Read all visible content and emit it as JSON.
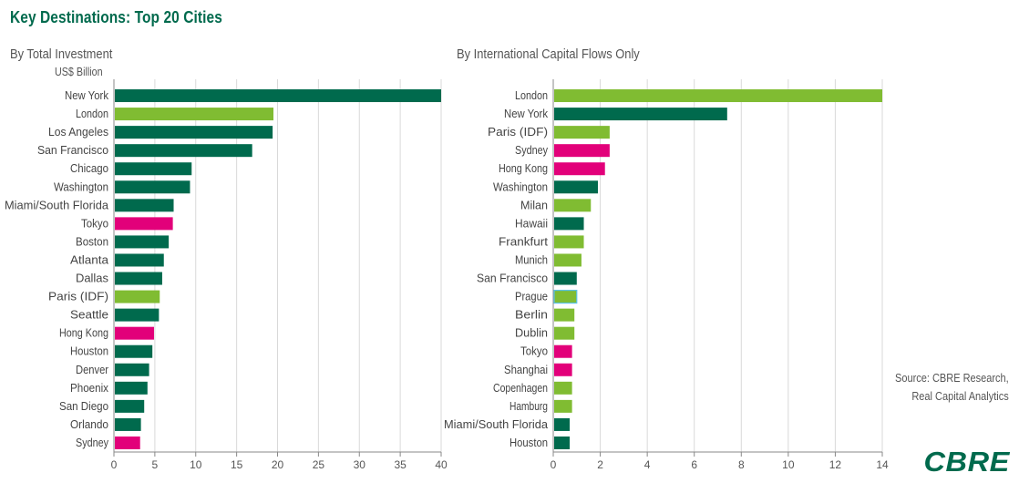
{
  "header": {
    "title": "Key Destinations: Top 20 Cities",
    "source_line1": "Source: CBRE Research,",
    "source_line2": "Real Capital Analytics",
    "logo": "CBRE"
  },
  "colors": {
    "dark_green": "#006a4d",
    "light_green": "#80bc32",
    "magenta": "#e2007a",
    "teal_outline": "#5bc2e7",
    "grid": "#d9d9d9",
    "axis": "#888888"
  },
  "chart_data": [
    {
      "type": "bar",
      "orientation": "horizontal",
      "title": "By Total Investment",
      "unit_label": "US$ Billion",
      "xlim": [
        0,
        40
      ],
      "xticks": [
        0,
        5,
        10,
        15,
        20,
        25,
        30,
        35,
        40
      ],
      "grid": true,
      "categories": [
        "New York",
        "London",
        "Los Angeles",
        "San Francisco",
        "Chicago",
        "Washington",
        "Miami/South Florida",
        "Tokyo",
        "Boston",
        "Atlanta",
        "Dallas",
        "Paris (IDF)",
        "Seattle",
        "Hong Kong",
        "Houston",
        "Denver",
        "Phoenix",
        "San Diego",
        "Orlando",
        "Sydney"
      ],
      "values": [
        40.0,
        19.5,
        19.4,
        16.9,
        9.5,
        9.3,
        7.3,
        7.2,
        6.7,
        6.1,
        5.9,
        5.6,
        5.5,
        4.9,
        4.7,
        4.3,
        4.1,
        3.7,
        3.3,
        3.2
      ],
      "bar_colors": [
        "dark_green",
        "light_green",
        "dark_green",
        "dark_green",
        "dark_green",
        "dark_green",
        "dark_green",
        "magenta",
        "dark_green",
        "dark_green",
        "dark_green",
        "light_green",
        "dark_green",
        "magenta",
        "dark_green",
        "dark_green",
        "dark_green",
        "dark_green",
        "dark_green",
        "magenta"
      ]
    },
    {
      "type": "bar",
      "orientation": "horizontal",
      "title": "By International Capital Flows Only",
      "unit_label": "",
      "xlim": [
        0,
        14
      ],
      "xticks": [
        0,
        2,
        4,
        6,
        8,
        10,
        12,
        14
      ],
      "grid": true,
      "categories": [
        "London",
        "New York",
        "Paris (IDF)",
        "Sydney",
        "Hong Kong",
        "Washington",
        "Milan",
        "Hawaii",
        "Frankfurt",
        "Munich",
        "San Francisco",
        "Prague",
        "Berlin",
        "Dublin",
        "Tokyo",
        "Shanghai",
        "Copenhagen",
        "Hamburg",
        "Miami/South Florida",
        "Houston"
      ],
      "values": [
        14.0,
        7.4,
        2.4,
        2.4,
        2.2,
        1.9,
        1.6,
        1.3,
        1.3,
        1.2,
        1.0,
        1.0,
        0.9,
        0.9,
        0.8,
        0.8,
        0.8,
        0.8,
        0.7,
        0.7
      ],
      "bar_colors": [
        "light_green",
        "dark_green",
        "light_green",
        "magenta",
        "magenta",
        "dark_green",
        "light_green",
        "dark_green",
        "light_green",
        "light_green",
        "dark_green",
        "light_green",
        "light_green",
        "light_green",
        "magenta",
        "magenta",
        "light_green",
        "light_green",
        "dark_green",
        "dark_green"
      ],
      "bar_outline": {
        "Prague": "teal_outline"
      }
    }
  ]
}
